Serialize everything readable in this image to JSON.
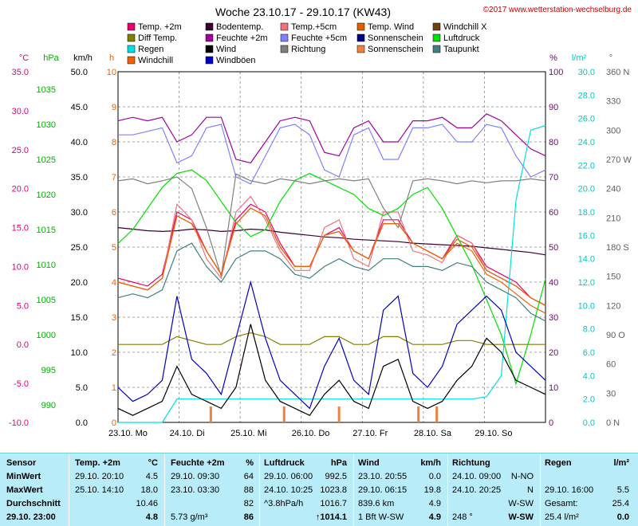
{
  "chart_data": {
    "type": "line",
    "title": "Woche 23.10.17 - 29.10.17 (KW43)",
    "copyright": "©2017 www.wetterstation-wechselburg.de",
    "legend": [
      {
        "name": "Temp. +2m",
        "color": "#e8006e"
      },
      {
        "name": "Bodentemp.",
        "color": "#3a0030"
      },
      {
        "name": "Temp.+5cm",
        "color": "#f07080"
      },
      {
        "name": "Temp. Wind",
        "color": "#e06000"
      },
      {
        "name": "Windchill X",
        "color": "#704010"
      },
      {
        "name": "Diff Temp.",
        "color": "#808000"
      },
      {
        "name": "Feuchte +2m",
        "color": "#a000a0"
      },
      {
        "name": "Feuchte +5cm",
        "color": "#8080ff"
      },
      {
        "name": "Sonnenschein",
        "color": "#000080"
      },
      {
        "name": "Luftdruck",
        "color": "#00e000"
      },
      {
        "name": "Regen",
        "color": "#00e0e0"
      },
      {
        "name": "Wind",
        "color": "#000000"
      },
      {
        "name": "Richtung",
        "color": "#808080"
      },
      {
        "name": "Sonnenschein",
        "color": "#f08040"
      },
      {
        "name": "Taupunkt",
        "color": "#408080"
      },
      {
        "name": "Windchill",
        "color": "#f06000"
      },
      {
        "name": "Windböen",
        "color": "#0000c0"
      }
    ],
    "axes": {
      "temp": {
        "unit": "°C",
        "ticks": [
          "35.0",
          "30.0",
          "25.0",
          "20.0",
          "15.0",
          "10.0",
          "5.0",
          "0.0",
          "-5.0",
          "-10.0"
        ],
        "color": "#e0007a"
      },
      "pressure": {
        "unit": "hPa",
        "ticks": [
          "1035",
          "1030",
          "1025",
          "1020",
          "1015",
          "1010",
          "1005",
          "1000",
          "995",
          "990"
        ],
        "color": "#00b000"
      },
      "wind": {
        "unit": "km/h",
        "ticks": [
          "50.0",
          "45.0",
          "40.0",
          "35.0",
          "30.0",
          "25.0",
          "20.0",
          "15.0",
          "10.0",
          "5.0",
          "0.0"
        ],
        "color": "#000000"
      },
      "sun": {
        "unit": "h",
        "ticks": [
          "10",
          "9",
          "8",
          "7",
          "6",
          "5",
          "4",
          "3",
          "2",
          "1",
          "0"
        ],
        "color": "#f06000"
      },
      "humidity": {
        "unit": "%",
        "ticks": [
          "100",
          "90",
          "80",
          "70",
          "60",
          "50",
          "40",
          "30",
          "20",
          "10",
          "0"
        ],
        "color": "#800080"
      },
      "rain": {
        "unit": "l/m²",
        "ticks": [
          "30.0",
          "28.0",
          "26.0",
          "24.0",
          "22.0",
          "20.0",
          "18.0",
          "16.0",
          "14.0",
          "12.0",
          "10.0",
          "8.0",
          "6.0",
          "4.0",
          "2.0",
          "0.0"
        ],
        "color": "#00c8c8"
      },
      "direction": {
        "unit": "°",
        "ticks": [
          "360 N",
          "330",
          "300",
          "270 W",
          "240",
          "210",
          "180 S",
          "150",
          "120",
          "90 O",
          "60",
          "30",
          "0 N"
        ],
        "color": "#606060"
      }
    },
    "x_labels": [
      "23.10. Mo",
      "24.10. Di",
      "25.10. Mi",
      "26.10. Do",
      "27.10. Fr",
      "28.10. Sa",
      "29.10. So"
    ],
    "series": [
      {
        "name": "Temp. +2m",
        "axis": "temp",
        "color": "#e8006e",
        "values": [
          8.5,
          8,
          7.5,
          9,
          17,
          16,
          12,
          9,
          16,
          18,
          17,
          13,
          10,
          10,
          14,
          15,
          12,
          11,
          16,
          16,
          13,
          12,
          11,
          14,
          13,
          10,
          9,
          8,
          6,
          5
        ]
      },
      {
        "name": "Bodentemp.",
        "axis": "temp",
        "color": "#3a0030",
        "values": [
          15,
          14.8,
          14.6,
          14.5,
          14.6,
          14.8,
          14.7,
          14.5,
          14.6,
          14.8,
          14.7,
          14.4,
          14.2,
          14.0,
          13.8,
          13.7,
          13.5,
          13.4,
          13.3,
          13.2,
          13.0,
          12.9,
          12.8,
          12.7,
          12.6,
          12.4,
          12.2,
          12.0,
          11.8,
          11.5
        ]
      },
      {
        "name": "Temp.+5cm",
        "axis": "temp",
        "color": "#f07080",
        "values": [
          8,
          7.5,
          7,
          8.5,
          18,
          16,
          11,
          8.5,
          17,
          19,
          16,
          12,
          9.5,
          9.5,
          15,
          16,
          11,
          10,
          17,
          17,
          12,
          11.5,
          10.5,
          14,
          13,
          9.5,
          8.5,
          7.5,
          6,
          5
        ]
      },
      {
        "name": "Temp. Wind",
        "axis": "temp",
        "color": "#e06000",
        "values": [
          8,
          7.5,
          7,
          8.5,
          16.5,
          15.5,
          12,
          9,
          15.5,
          17.5,
          16.5,
          12.5,
          10,
          10,
          14,
          14.5,
          12,
          11,
          15.5,
          15.5,
          13,
          12,
          11,
          13.5,
          12.5,
          9.5,
          8.5,
          7.5,
          6,
          5
        ]
      },
      {
        "name": "Diff Temp.",
        "axis": "temp",
        "color": "#808000",
        "values": [
          0,
          0,
          0,
          0,
          1,
          0.5,
          0,
          0,
          1,
          1.5,
          1,
          0,
          0,
          0,
          1,
          1,
          0,
          0,
          1,
          1,
          0,
          0,
          0,
          0.5,
          0.5,
          0,
          0,
          0,
          0,
          0
        ]
      },
      {
        "name": "Feuchte +2m",
        "axis": "humidity",
        "color": "#a000a0",
        "values": [
          86,
          87,
          86,
          87,
          80,
          82,
          87,
          87,
          75,
          74,
          80,
          86,
          87,
          86,
          77,
          76,
          84,
          86,
          80,
          80,
          86,
          86,
          87,
          84,
          84,
          88,
          86,
          82,
          78,
          76
        ]
      },
      {
        "name": "Feuchte +5cm",
        "axis": "humidity",
        "color": "#8080ff",
        "values": [
          82,
          82,
          83,
          84,
          74,
          76,
          84,
          85,
          70,
          68,
          76,
          84,
          85,
          82,
          72,
          70,
          82,
          84,
          75,
          75,
          84,
          84,
          85,
          80,
          80,
          85,
          84,
          76,
          70,
          72
        ]
      },
      {
        "name": "Luftdruck",
        "axis": "pressure",
        "color": "#00e000",
        "values": [
          1013,
          1015,
          1018,
          1021,
          1023,
          1023.5,
          1022,
          1019,
          1016,
          1014,
          1015,
          1019,
          1022,
          1023,
          1022,
          1021,
          1020,
          1018,
          1017,
          1018,
          1020,
          1021,
          1018,
          1014,
          1010,
          1005,
          1000,
          993,
          1000,
          1008
        ]
      },
      {
        "name": "Regen",
        "axis": "rain",
        "color": "#00e0e0",
        "values": [
          0,
          0,
          0,
          0,
          2,
          2,
          2,
          2,
          2,
          2,
          2,
          2,
          2,
          2,
          2,
          2,
          2,
          2,
          2,
          2,
          2,
          2,
          2,
          2,
          2,
          2.2,
          4,
          19,
          25,
          25.4
        ]
      },
      {
        "name": "Wind",
        "axis": "wind",
        "color": "#000000",
        "values": [
          2,
          1,
          2,
          3,
          8,
          4,
          3,
          2,
          5,
          14,
          6,
          3,
          2,
          1,
          4,
          6,
          3,
          2,
          8,
          9,
          3,
          2,
          3,
          6,
          8,
          12,
          10,
          6,
          5,
          4
        ]
      },
      {
        "name": "Richtung",
        "axis": "direction",
        "color": "#808080",
        "values": [
          248,
          250,
          245,
          248,
          252,
          240,
          200,
          150,
          255,
          248,
          245,
          250,
          248,
          245,
          248,
          250,
          248,
          250,
          220,
          200,
          248,
          250,
          248,
          245,
          248,
          246,
          248,
          248,
          250,
          248
        ]
      },
      {
        "name": "Taupunkt",
        "axis": "temp",
        "color": "#408080",
        "values": [
          6,
          6.5,
          6,
          7,
          12,
          13,
          10,
          8,
          11,
          12,
          12,
          11,
          9,
          8.5,
          10,
          11,
          10,
          9.5,
          11,
          11,
          10,
          10,
          9.5,
          10.5,
          10,
          8,
          7,
          6,
          4,
          3
        ]
      },
      {
        "name": "Windchill",
        "axis": "temp",
        "color": "#f06000",
        "values": [
          8,
          7.5,
          7,
          8.5,
          16.5,
          15.5,
          12,
          9,
          15.5,
          17.5,
          16.5,
          12.5,
          10,
          10,
          14,
          14.5,
          12,
          11,
          15.5,
          15.5,
          13,
          12,
          11,
          13,
          12,
          9,
          8,
          6.5,
          5,
          4
        ]
      },
      {
        "name": "Windböen",
        "axis": "wind",
        "color": "#0000c0",
        "values": [
          5,
          3,
          4,
          6,
          18,
          9,
          7,
          4,
          12,
          20,
          12,
          6,
          4,
          2,
          8,
          12,
          6,
          4,
          16,
          18,
          7,
          5,
          8,
          14,
          16,
          18,
          16,
          10,
          8,
          6
        ]
      }
    ]
  },
  "table": {
    "sensor": {
      "header": "Sensor",
      "minwert": "MinWert",
      "maxwert": "MaxWert",
      "durchschnitt": "Durchschnitt",
      "datetime": "29.10. 23:00"
    },
    "temp": {
      "header": "Temp. +2m",
      "unit": "°C",
      "min_time": "29.10. 20:10",
      "min_val": "4.5",
      "max_time": "25.10. 14:10",
      "max_val": "18.0",
      "avg": "10.46",
      "current": "4.8"
    },
    "humidity": {
      "header": "Feuchte +2m",
      "unit": "%",
      "min_time": "29.10. 09:30",
      "min_val": "64",
      "max_time": "23.10. 03:30",
      "max_val": "88",
      "avg": "82",
      "abs": "5.73 g/m³",
      "current": "86"
    },
    "pressure": {
      "header": "Luftdruck",
      "unit": "hPa",
      "min_time": "29.10. 06:00",
      "min_val": "992.5",
      "max_time": "24.10. 10:25",
      "max_val": "1023.8",
      "trend": "^3.8hPa/h",
      "avg": "1016.7",
      "current": "↑1014.1"
    },
    "wind": {
      "header": "Wind",
      "unit": "km/h",
      "min_time": "23.10. 20:55",
      "min_val": "0.0",
      "max_time": "29.10. 06:15",
      "max_val": "19.8",
      "distance": "839.6 km",
      "avg": "4.9",
      "bft": "1 Bft W-SW",
      "current": "4.9"
    },
    "direction": {
      "header": "Richtung",
      "min_time": "24.10. 09:00",
      "min_val": "N-NO",
      "max_time": "24.10. 20:25",
      "max_val": "N",
      "avg": "W-SW",
      "deg": "248 °",
      "current": "W-SW"
    },
    "rain": {
      "header": "Regen",
      "unit": "l/m²",
      "max_time": "29.10. 16:00",
      "max_val": "5.5",
      "total_label": "Gesamt:",
      "total": "25.4",
      "current_label": "25.4 l/m²",
      "current": "0.0"
    }
  }
}
